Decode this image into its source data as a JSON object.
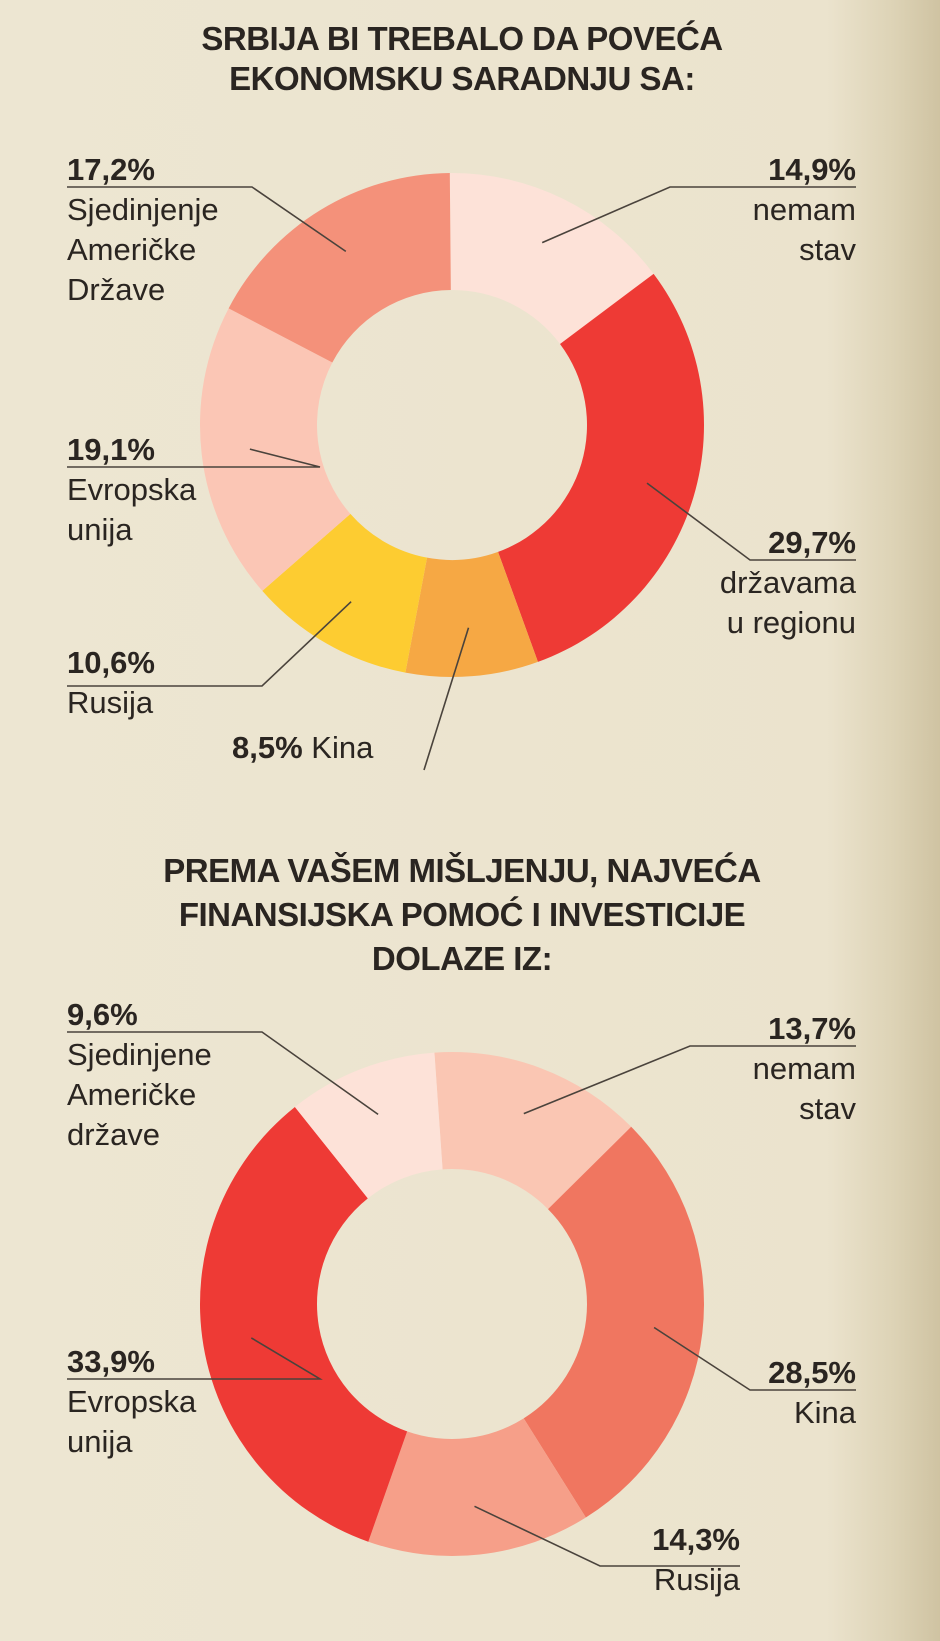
{
  "chart_data": [
    {
      "type": "pie",
      "title_lines": [
        "SRBIJA BI TREBALO DA POVEĆA",
        "EKONOMSKU SARADNJU SA:"
      ],
      "slices": [
        {
          "value": 14.9,
          "pct_label": "14,9%",
          "label_lines": [
            "nemam",
            "stav"
          ],
          "color": "#fde2d8"
        },
        {
          "value": 29.7,
          "pct_label": "29,7%",
          "label_lines": [
            "državama",
            "u regionu"
          ],
          "color": "#ee3a35"
        },
        {
          "value": 8.5,
          "pct_label": "8,5%",
          "label_lines": [
            "Kina"
          ],
          "color": "#f6a844"
        },
        {
          "value": 10.6,
          "pct_label": "10,6%",
          "label_lines": [
            "Rusija"
          ],
          "color": "#fdcc31"
        },
        {
          "value": 19.1,
          "pct_label": "19,1%",
          "label_lines": [
            "Evropska",
            "unija"
          ],
          "color": "#fbc6b5"
        },
        {
          "value": 17.2,
          "pct_label": "17,2%",
          "label_lines": [
            "Sjedinjenje",
            "Američke",
            "Države"
          ],
          "color": "#f4917a"
        }
      ]
    },
    {
      "type": "pie",
      "title_lines": [
        "PREMA VAŠEM MIŠLJENJU, NAJVEĆA",
        "FINANSIJSKA POMOĆ I INVESTICIJE",
        "DOLAZE IZ:"
      ],
      "slices": [
        {
          "value": 13.7,
          "pct_label": "13,7%",
          "label_lines": [
            "nemam",
            "stav"
          ],
          "color": "#fac6b3"
        },
        {
          "value": 28.5,
          "pct_label": "28,5%",
          "label_lines": [
            "Kina"
          ],
          "color": "#f07660"
        },
        {
          "value": 14.3,
          "pct_label": "14,3%",
          "label_lines": [
            "Rusija"
          ],
          "color": "#f69f89"
        },
        {
          "value": 33.9,
          "pct_label": "33,9%",
          "label_lines": [
            "Evropska",
            "unija"
          ],
          "color": "#ee3a35"
        },
        {
          "value": 9.6,
          "pct_label": "9,6%",
          "label_lines": [
            "Sjedinjene",
            "Američke",
            "države"
          ],
          "color": "#fde2d8"
        }
      ]
    }
  ]
}
